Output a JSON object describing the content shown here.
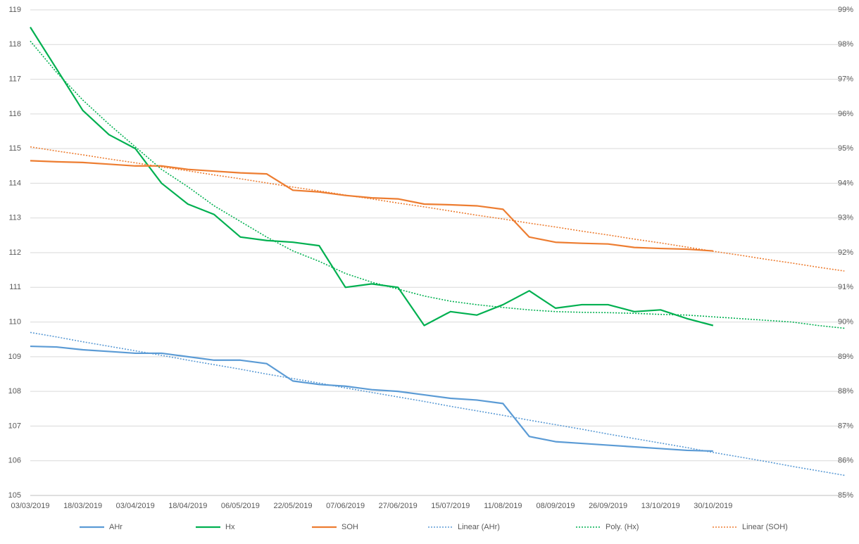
{
  "chart_data": {
    "type": "line",
    "categories": [
      "03/03/2019",
      null,
      "18/03/2019",
      null,
      "03/04/2019",
      null,
      "18/04/2019",
      null,
      "06/05/2019",
      null,
      "22/05/2019",
      null,
      "07/06/2019",
      null,
      "27/06/2019",
      null,
      "15/07/2019",
      null,
      "11/08/2019",
      null,
      "08/09/2019",
      null,
      "26/09/2019",
      null,
      "13/10/2019",
      null,
      "30/10/2019",
      null,
      null,
      null,
      null,
      null
    ],
    "ylim": [
      105,
      119
    ],
    "yticks": [
      105,
      106,
      107,
      108,
      109,
      110,
      111,
      112,
      113,
      114,
      115,
      116,
      117,
      118,
      119
    ],
    "y2lim": [
      85,
      99
    ],
    "y2ticks": [
      {
        "value": 85,
        "label": "85%"
      },
      {
        "value": 86,
        "label": "86%"
      },
      {
        "value": 87,
        "label": "87%"
      },
      {
        "value": 88,
        "label": "88%"
      },
      {
        "value": 89,
        "label": "89%"
      },
      {
        "value": 90,
        "label": "90%"
      },
      {
        "value": 91,
        "label": "91%"
      },
      {
        "value": 92,
        "label": "92%"
      },
      {
        "value": 93,
        "label": "93%"
      },
      {
        "value": 94,
        "label": "94%"
      },
      {
        "value": 95,
        "label": "95%"
      },
      {
        "value": 96,
        "label": "96%"
      },
      {
        "value": 97,
        "label": "97%"
      },
      {
        "value": 98,
        "label": "98%"
      },
      {
        "value": 99,
        "label": "99%"
      }
    ],
    "grid": true,
    "series": [
      {
        "name": "AHr",
        "color": "#5b9bd5",
        "dashed": false,
        "values": [
          109.3,
          109.28,
          109.2,
          109.15,
          109.1,
          109.1,
          109.0,
          108.9,
          108.9,
          108.8,
          108.3,
          108.2,
          108.15,
          108.05,
          108.0,
          107.9,
          107.8,
          107.75,
          107.65,
          106.7,
          106.55,
          106.5,
          106.45,
          106.4,
          106.35,
          106.3,
          106.28,
          null,
          null,
          null,
          null,
          null
        ]
      },
      {
        "name": "Hx",
        "color": "#00b050",
        "dashed": false,
        "values": [
          118.5,
          117.3,
          116.1,
          115.4,
          115.0,
          114.0,
          113.4,
          113.1,
          112.45,
          112.35,
          112.3,
          112.2,
          111.0,
          111.1,
          111.0,
          109.9,
          110.3,
          110.2,
          110.5,
          110.9,
          110.4,
          110.5,
          110.5,
          110.3,
          110.35,
          110.1,
          109.9,
          null,
          null,
          null,
          null,
          null
        ]
      },
      {
        "name": "SOH",
        "color": "#ed7d31",
        "dashed": false,
        "axis": "y2",
        "values": [
          94.65,
          94.62,
          94.6,
          94.55,
          94.5,
          94.5,
          94.4,
          94.35,
          94.3,
          94.27,
          93.8,
          93.75,
          93.65,
          93.58,
          93.55,
          93.4,
          93.38,
          93.35,
          93.25,
          92.45,
          92.3,
          92.27,
          92.25,
          92.15,
          92.12,
          92.1,
          92.05,
          null,
          null,
          null,
          null,
          null
        ]
      },
      {
        "name": "Linear (AHr)",
        "color": "#5b9bd5",
        "dashed": true,
        "values": [
          109.7,
          109.57,
          109.43,
          109.3,
          109.17,
          109.04,
          108.9,
          108.77,
          108.64,
          108.5,
          108.37,
          108.24,
          108.1,
          107.97,
          107.84,
          107.71,
          107.57,
          107.44,
          107.31,
          107.17,
          107.04,
          106.91,
          106.77,
          106.64,
          106.51,
          106.38,
          106.24,
          106.11,
          105.98,
          105.84,
          105.71,
          105.58
        ]
      },
      {
        "name": "Poly. (Hx)",
        "color": "#00b050",
        "dashed": true,
        "values": [
          118.1,
          117.2,
          116.4,
          115.7,
          115.05,
          114.4,
          113.9,
          113.35,
          112.9,
          112.45,
          112.05,
          111.75,
          111.4,
          111.15,
          110.95,
          110.75,
          110.6,
          110.5,
          110.42,
          110.35,
          110.3,
          110.28,
          110.27,
          110.25,
          110.22,
          110.2,
          110.15,
          110.1,
          110.05,
          110.0,
          109.9,
          109.82
        ]
      },
      {
        "name": "Linear (SOH)",
        "color": "#ed7d31",
        "dashed": true,
        "axis": "y2",
        "values": [
          95.05,
          94.93,
          94.82,
          94.7,
          94.59,
          94.47,
          94.36,
          94.24,
          94.13,
          94.01,
          93.89,
          93.78,
          93.66,
          93.55,
          93.43,
          93.32,
          93.2,
          93.08,
          92.97,
          92.85,
          92.74,
          92.62,
          92.51,
          92.39,
          92.28,
          92.16,
          92.04,
          91.93,
          91.81,
          91.7,
          91.58,
          91.47
        ]
      }
    ]
  }
}
